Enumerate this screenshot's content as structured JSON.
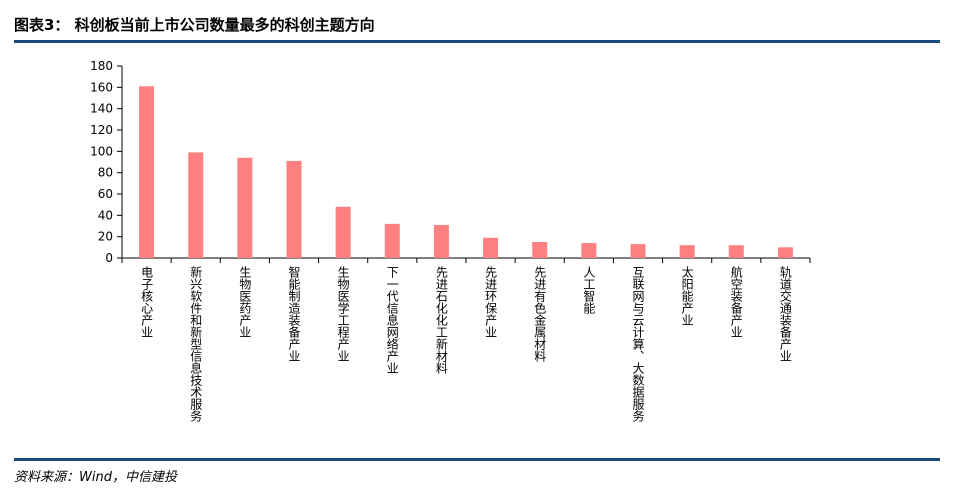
{
  "header": {
    "title": "图表3：  科创板当前上市公司数量最多的科创主题方向"
  },
  "footer": {
    "source": "资料来源：Wind，中信建投"
  },
  "chart_data": {
    "type": "bar",
    "categories": [
      "电子核心产业",
      "新兴软件和新型信息技术服务",
      "生物医药产业",
      "智能制造装备产业",
      "生物医学工程产业",
      "下一代信息网络产业",
      "先进石化化工新材料",
      "先进环保产业",
      "先进有色金属材料",
      "人工智能",
      "互联网与云计算、大数据服务",
      "太阳能产业",
      "航空装备产业",
      "轨道交通装备产业"
    ],
    "values": [
      161,
      99,
      94,
      91,
      48,
      32,
      31,
      19,
      15,
      14,
      13,
      12,
      12,
      10
    ],
    "ylim": [
      0,
      180
    ],
    "yticks": [
      0,
      20,
      40,
      60,
      80,
      100,
      120,
      140,
      160,
      180
    ],
    "title": "",
    "xlabel": "",
    "ylabel": "",
    "bar_color": "#ff8080",
    "grid": false,
    "legend": "none"
  }
}
